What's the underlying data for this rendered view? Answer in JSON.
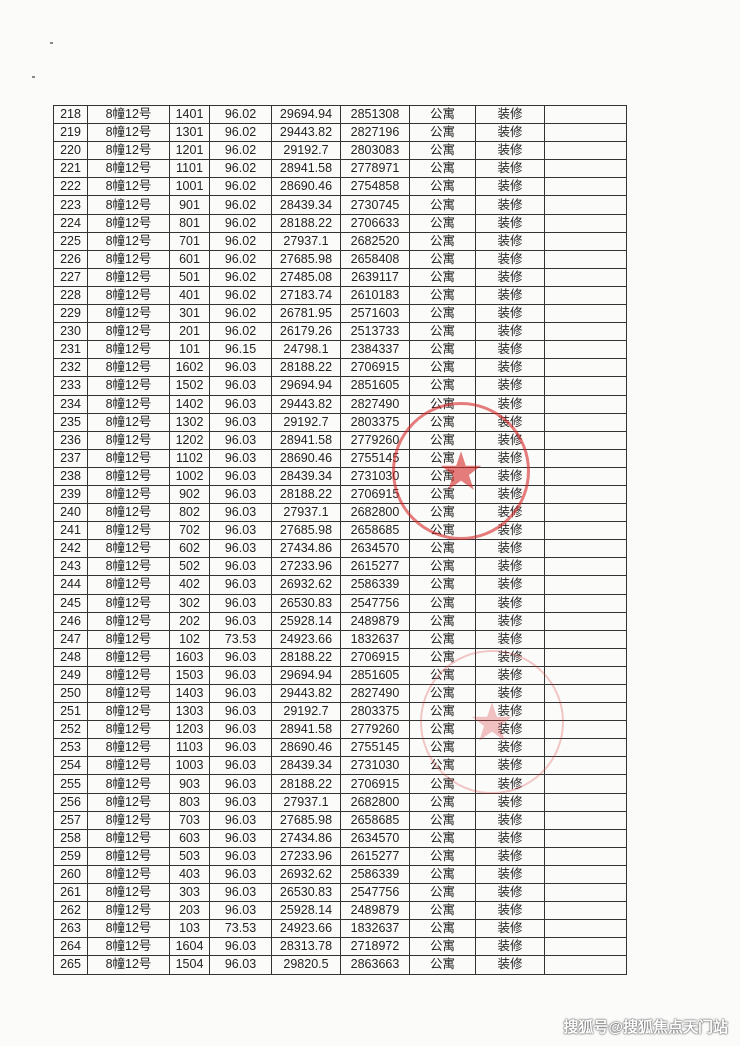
{
  "table": {
    "rows": [
      [
        "218",
        "8幢12号",
        "1401",
        "96.02",
        "29694.94",
        "2851308",
        "公寓",
        "装修",
        ""
      ],
      [
        "219",
        "8幢12号",
        "1301",
        "96.02",
        "29443.82",
        "2827196",
        "公寓",
        "装修",
        ""
      ],
      [
        "220",
        "8幢12号",
        "1201",
        "96.02",
        "29192.7",
        "2803083",
        "公寓",
        "装修",
        ""
      ],
      [
        "221",
        "8幢12号",
        "1101",
        "96.02",
        "28941.58",
        "2778971",
        "公寓",
        "装修",
        ""
      ],
      [
        "222",
        "8幢12号",
        "1001",
        "96.02",
        "28690.46",
        "2754858",
        "公寓",
        "装修",
        ""
      ],
      [
        "223",
        "8幢12号",
        "901",
        "96.02",
        "28439.34",
        "2730745",
        "公寓",
        "装修",
        ""
      ],
      [
        "224",
        "8幢12号",
        "801",
        "96.02",
        "28188.22",
        "2706633",
        "公寓",
        "装修",
        ""
      ],
      [
        "225",
        "8幢12号",
        "701",
        "96.02",
        "27937.1",
        "2682520",
        "公寓",
        "装修",
        ""
      ],
      [
        "226",
        "8幢12号",
        "601",
        "96.02",
        "27685.98",
        "2658408",
        "公寓",
        "装修",
        ""
      ],
      [
        "227",
        "8幢12号",
        "501",
        "96.02",
        "27485.08",
        "2639117",
        "公寓",
        "装修",
        ""
      ],
      [
        "228",
        "8幢12号",
        "401",
        "96.02",
        "27183.74",
        "2610183",
        "公寓",
        "装修",
        ""
      ],
      [
        "229",
        "8幢12号",
        "301",
        "96.02",
        "26781.95",
        "2571603",
        "公寓",
        "装修",
        ""
      ],
      [
        "230",
        "8幢12号",
        "201",
        "96.02",
        "26179.26",
        "2513733",
        "公寓",
        "装修",
        ""
      ],
      [
        "231",
        "8幢12号",
        "101",
        "96.15",
        "24798.1",
        "2384337",
        "公寓",
        "装修",
        ""
      ],
      [
        "232",
        "8幢12号",
        "1602",
        "96.03",
        "28188.22",
        "2706915",
        "公寓",
        "装修",
        ""
      ],
      [
        "233",
        "8幢12号",
        "1502",
        "96.03",
        "29694.94",
        "2851605",
        "公寓",
        "装修",
        ""
      ],
      [
        "234",
        "8幢12号",
        "1402",
        "96.03",
        "29443.82",
        "2827490",
        "公寓",
        "装修",
        ""
      ],
      [
        "235",
        "8幢12号",
        "1302",
        "96.03",
        "29192.7",
        "2803375",
        "公寓",
        "装修",
        ""
      ],
      [
        "236",
        "8幢12号",
        "1202",
        "96.03",
        "28941.58",
        "2779260",
        "公寓",
        "装修",
        ""
      ],
      [
        "237",
        "8幢12号",
        "1102",
        "96.03",
        "28690.46",
        "2755145",
        "公寓",
        "装修",
        ""
      ],
      [
        "238",
        "8幢12号",
        "1002",
        "96.03",
        "28439.34",
        "2731030",
        "公寓",
        "装修",
        ""
      ],
      [
        "239",
        "8幢12号",
        "902",
        "96.03",
        "28188.22",
        "2706915",
        "公寓",
        "装修",
        ""
      ],
      [
        "240",
        "8幢12号",
        "802",
        "96.03",
        "27937.1",
        "2682800",
        "公寓",
        "装修",
        ""
      ],
      [
        "241",
        "8幢12号",
        "702",
        "96.03",
        "27685.98",
        "2658685",
        "公寓",
        "装修",
        ""
      ],
      [
        "242",
        "8幢12号",
        "602",
        "96.03",
        "27434.86",
        "2634570",
        "公寓",
        "装修",
        ""
      ],
      [
        "243",
        "8幢12号",
        "502",
        "96.03",
        "27233.96",
        "2615277",
        "公寓",
        "装修",
        ""
      ],
      [
        "244",
        "8幢12号",
        "402",
        "96.03",
        "26932.62",
        "2586339",
        "公寓",
        "装修",
        ""
      ],
      [
        "245",
        "8幢12号",
        "302",
        "96.03",
        "26530.83",
        "2547756",
        "公寓",
        "装修",
        ""
      ],
      [
        "246",
        "8幢12号",
        "202",
        "96.03",
        "25928.14",
        "2489879",
        "公寓",
        "装修",
        ""
      ],
      [
        "247",
        "8幢12号",
        "102",
        "73.53",
        "24923.66",
        "1832637",
        "公寓",
        "装修",
        ""
      ],
      [
        "248",
        "8幢12号",
        "1603",
        "96.03",
        "28188.22",
        "2706915",
        "公寓",
        "装修",
        ""
      ],
      [
        "249",
        "8幢12号",
        "1503",
        "96.03",
        "29694.94",
        "2851605",
        "公寓",
        "装修",
        ""
      ],
      [
        "250",
        "8幢12号",
        "1403",
        "96.03",
        "29443.82",
        "2827490",
        "公寓",
        "装修",
        ""
      ],
      [
        "251",
        "8幢12号",
        "1303",
        "96.03",
        "29192.7",
        "2803375",
        "公寓",
        "装修",
        ""
      ],
      [
        "252",
        "8幢12号",
        "1203",
        "96.03",
        "28941.58",
        "2779260",
        "公寓",
        "装修",
        ""
      ],
      [
        "253",
        "8幢12号",
        "1103",
        "96.03",
        "28690.46",
        "2755145",
        "公寓",
        "装修",
        ""
      ],
      [
        "254",
        "8幢12号",
        "1003",
        "96.03",
        "28439.34",
        "2731030",
        "公寓",
        "装修",
        ""
      ],
      [
        "255",
        "8幢12号",
        "903",
        "96.03",
        "28188.22",
        "2706915",
        "公寓",
        "装修",
        ""
      ],
      [
        "256",
        "8幢12号",
        "803",
        "96.03",
        "27937.1",
        "2682800",
        "公寓",
        "装修",
        ""
      ],
      [
        "257",
        "8幢12号",
        "703",
        "96.03",
        "27685.98",
        "2658685",
        "公寓",
        "装修",
        ""
      ],
      [
        "258",
        "8幢12号",
        "603",
        "96.03",
        "27434.86",
        "2634570",
        "公寓",
        "装修",
        ""
      ],
      [
        "259",
        "8幢12号",
        "503",
        "96.03",
        "27233.96",
        "2615277",
        "公寓",
        "装修",
        ""
      ],
      [
        "260",
        "8幢12号",
        "403",
        "96.03",
        "26932.62",
        "2586339",
        "公寓",
        "装修",
        ""
      ],
      [
        "261",
        "8幢12号",
        "303",
        "96.03",
        "26530.83",
        "2547756",
        "公寓",
        "装修",
        ""
      ],
      [
        "262",
        "8幢12号",
        "203",
        "96.03",
        "25928.14",
        "2489879",
        "公寓",
        "装修",
        ""
      ],
      [
        "263",
        "8幢12号",
        "103",
        "73.53",
        "24923.66",
        "1832637",
        "公寓",
        "装修",
        ""
      ],
      [
        "264",
        "8幢12号",
        "1604",
        "96.03",
        "28313.78",
        "2718972",
        "公寓",
        "装修",
        ""
      ],
      [
        "265",
        "8幢12号",
        "1504",
        "96.03",
        "29820.5",
        "2863663",
        "公寓",
        "装修",
        ""
      ]
    ]
  },
  "stamp_color": "#d72828",
  "watermark": "搜狐号@搜狐焦点天门站"
}
